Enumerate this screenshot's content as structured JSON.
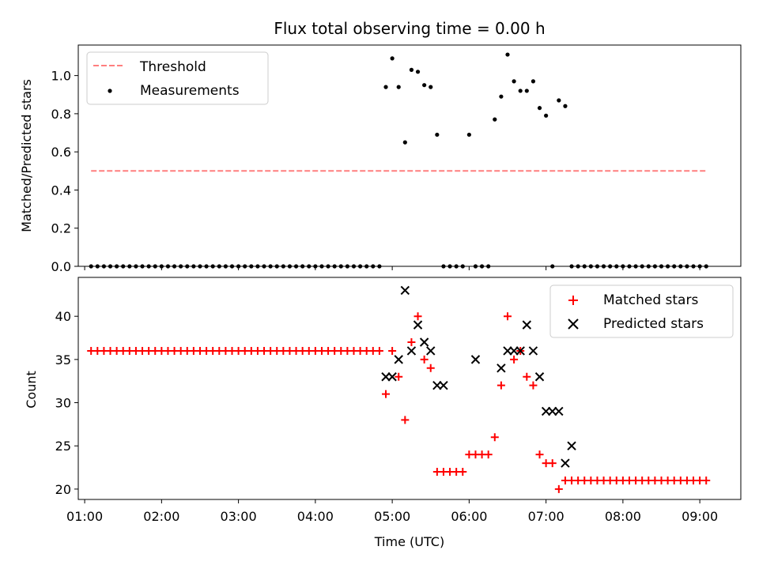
{
  "chart_data": [
    {
      "type": "scatter",
      "title": "Flux total observing time = 0.00 h",
      "xlabel": "",
      "ylabel": "Matched/Predicted stars",
      "x_unit": "time (UTC)",
      "xlim": [
        "00:55",
        "09:32"
      ],
      "ylim": [
        0,
        1.16
      ],
      "yticks": [
        0.0,
        0.2,
        0.4,
        0.6,
        0.8,
        1.0
      ],
      "ytick_labels": [
        "0.0",
        "0.2",
        "0.4",
        "0.6",
        "0.8",
        "1.0"
      ],
      "legend_position": "top-left",
      "series": [
        {
          "name": "Threshold",
          "style": "dashed-line",
          "color": "#ff7f7f",
          "x": [
            "01:05",
            "09:05"
          ],
          "y": [
            0.5,
            0.5
          ]
        },
        {
          "name": "Measurements",
          "style": "dot",
          "color": "#000000",
          "x": [
            "01:05",
            "01:10",
            "01:15",
            "01:20",
            "01:25",
            "01:30",
            "01:35",
            "01:40",
            "01:45",
            "01:50",
            "01:55",
            "02:00",
            "02:05",
            "02:10",
            "02:15",
            "02:20",
            "02:25",
            "02:30",
            "02:35",
            "02:40",
            "02:45",
            "02:50",
            "02:55",
            "03:00",
            "03:05",
            "03:10",
            "03:15",
            "03:20",
            "03:25",
            "03:30",
            "03:35",
            "03:40",
            "03:45",
            "03:50",
            "03:55",
            "04:00",
            "04:05",
            "04:10",
            "04:15",
            "04:20",
            "04:25",
            "04:30",
            "04:35",
            "04:40",
            "04:45",
            "04:50",
            "04:55",
            "05:00",
            "05:05",
            "05:10",
            "05:15",
            "05:20",
            "05:25",
            "05:30",
            "05:35",
            "05:40",
            "05:45",
            "05:50",
            "05:55",
            "06:00",
            "06:05",
            "06:10",
            "06:15",
            "06:20",
            "06:25",
            "06:30",
            "06:35",
            "06:40",
            "06:45",
            "06:50",
            "06:55",
            "07:00",
            "07:05",
            "07:10",
            "07:15",
            "07:20",
            "07:25",
            "07:30",
            "07:35",
            "07:40",
            "07:45",
            "07:50",
            "07:55",
            "08:00",
            "08:05",
            "08:10",
            "08:15",
            "08:20",
            "08:25",
            "08:30",
            "08:35",
            "08:40",
            "08:45",
            "08:50",
            "08:55",
            "09:00",
            "09:05"
          ],
          "y": [
            0,
            0,
            0,
            0,
            0,
            0,
            0,
            0,
            0,
            0,
            0,
            0,
            0,
            0,
            0,
            0,
            0,
            0,
            0,
            0,
            0,
            0,
            0,
            0,
            0,
            0,
            0,
            0,
            0,
            0,
            0,
            0,
            0,
            0,
            0,
            0,
            0,
            0,
            0,
            0,
            0,
            0,
            0,
            0,
            0,
            0,
            0.94,
            1.09,
            0.94,
            0.65,
            1.03,
            1.02,
            0.95,
            0.94,
            0.69,
            0,
            0,
            0,
            0,
            0.69,
            0,
            0,
            0,
            0.77,
            0.89,
            1.11,
            0.97,
            0.92,
            0.92,
            0.97,
            0.83,
            0.79,
            0,
            0.87,
            0.84,
            0,
            0,
            0,
            0,
            0,
            0,
            0,
            0,
            0,
            0,
            0,
            0,
            0,
            0,
            0,
            0,
            0,
            0,
            0,
            0,
            0,
            0
          ]
        }
      ]
    },
    {
      "type": "scatter",
      "title": "",
      "xlabel": "Time (UTC)",
      "ylabel": "Count",
      "xlim": [
        "00:55",
        "09:32"
      ],
      "ylim": [
        18.8,
        44.5
      ],
      "xticks": [
        "01:00",
        "02:00",
        "03:00",
        "04:00",
        "05:00",
        "06:00",
        "07:00",
        "08:00",
        "09:00"
      ],
      "yticks": [
        20,
        25,
        30,
        35,
        40
      ],
      "ytick_labels": [
        "20",
        "25",
        "30",
        "35",
        "40"
      ],
      "legend_position": "top-right",
      "series": [
        {
          "name": "Matched stars",
          "marker": "plus",
          "color": "#ff0000",
          "x": [
            "01:05",
            "01:10",
            "01:15",
            "01:20",
            "01:25",
            "01:30",
            "01:35",
            "01:40",
            "01:45",
            "01:50",
            "01:55",
            "02:00",
            "02:05",
            "02:10",
            "02:15",
            "02:20",
            "02:25",
            "02:30",
            "02:35",
            "02:40",
            "02:45",
            "02:50",
            "02:55",
            "03:00",
            "03:05",
            "03:10",
            "03:15",
            "03:20",
            "03:25",
            "03:30",
            "03:35",
            "03:40",
            "03:45",
            "03:50",
            "03:55",
            "04:00",
            "04:05",
            "04:10",
            "04:15",
            "04:20",
            "04:25",
            "04:30",
            "04:35",
            "04:40",
            "04:45",
            "04:50",
            "04:55",
            "05:00",
            "05:05",
            "05:10",
            "05:15",
            "05:20",
            "05:25",
            "05:30",
            "05:35",
            "05:40",
            "05:45",
            "05:50",
            "05:55",
            "06:00",
            "06:05",
            "06:10",
            "06:15",
            "06:20",
            "06:25",
            "06:30",
            "06:35",
            "06:40",
            "06:45",
            "06:50",
            "06:55",
            "07:00",
            "07:05",
            "07:10",
            "07:15",
            "07:20",
            "07:25",
            "07:30",
            "07:35",
            "07:40",
            "07:45",
            "07:50",
            "07:55",
            "08:00",
            "08:05",
            "08:10",
            "08:15",
            "08:20",
            "08:25",
            "08:30",
            "08:35",
            "08:40",
            "08:45",
            "08:50",
            "08:55",
            "09:00",
            "09:05"
          ],
          "y": [
            36,
            36,
            36,
            36,
            36,
            36,
            36,
            36,
            36,
            36,
            36,
            36,
            36,
            36,
            36,
            36,
            36,
            36,
            36,
            36,
            36,
            36,
            36,
            36,
            36,
            36,
            36,
            36,
            36,
            36,
            36,
            36,
            36,
            36,
            36,
            36,
            36,
            36,
            36,
            36,
            36,
            36,
            36,
            36,
            36,
            36,
            31,
            36,
            33,
            28,
            37,
            40,
            35,
            34,
            22,
            22,
            22,
            22,
            22,
            24,
            24,
            24,
            24,
            26,
            32,
            40,
            35,
            36,
            33,
            32,
            24,
            23,
            23,
            20,
            21,
            21,
            21,
            21,
            21,
            21,
            21,
            21,
            21,
            21,
            21,
            21,
            21,
            21,
            21,
            21,
            21,
            21,
            21,
            21,
            21,
            21,
            21
          ]
        },
        {
          "name": "Predicted stars",
          "marker": "x",
          "color": "#000000",
          "x": [
            "04:55",
            "05:00",
            "05:05",
            "05:10",
            "05:15",
            "05:20",
            "05:25",
            "05:30",
            "05:35",
            "05:40",
            "06:05",
            "06:25",
            "06:30",
            "06:35",
            "06:40",
            "06:45",
            "06:50",
            "06:55",
            "07:00",
            "07:05",
            "07:10",
            "07:15",
            "07:20"
          ],
          "y": [
            33,
            33,
            35,
            43,
            36,
            39,
            37,
            36,
            32,
            32,
            35,
            34,
            36,
            36,
            36,
            39,
            36,
            33,
            29,
            29,
            29,
            23,
            25
          ]
        }
      ]
    }
  ]
}
